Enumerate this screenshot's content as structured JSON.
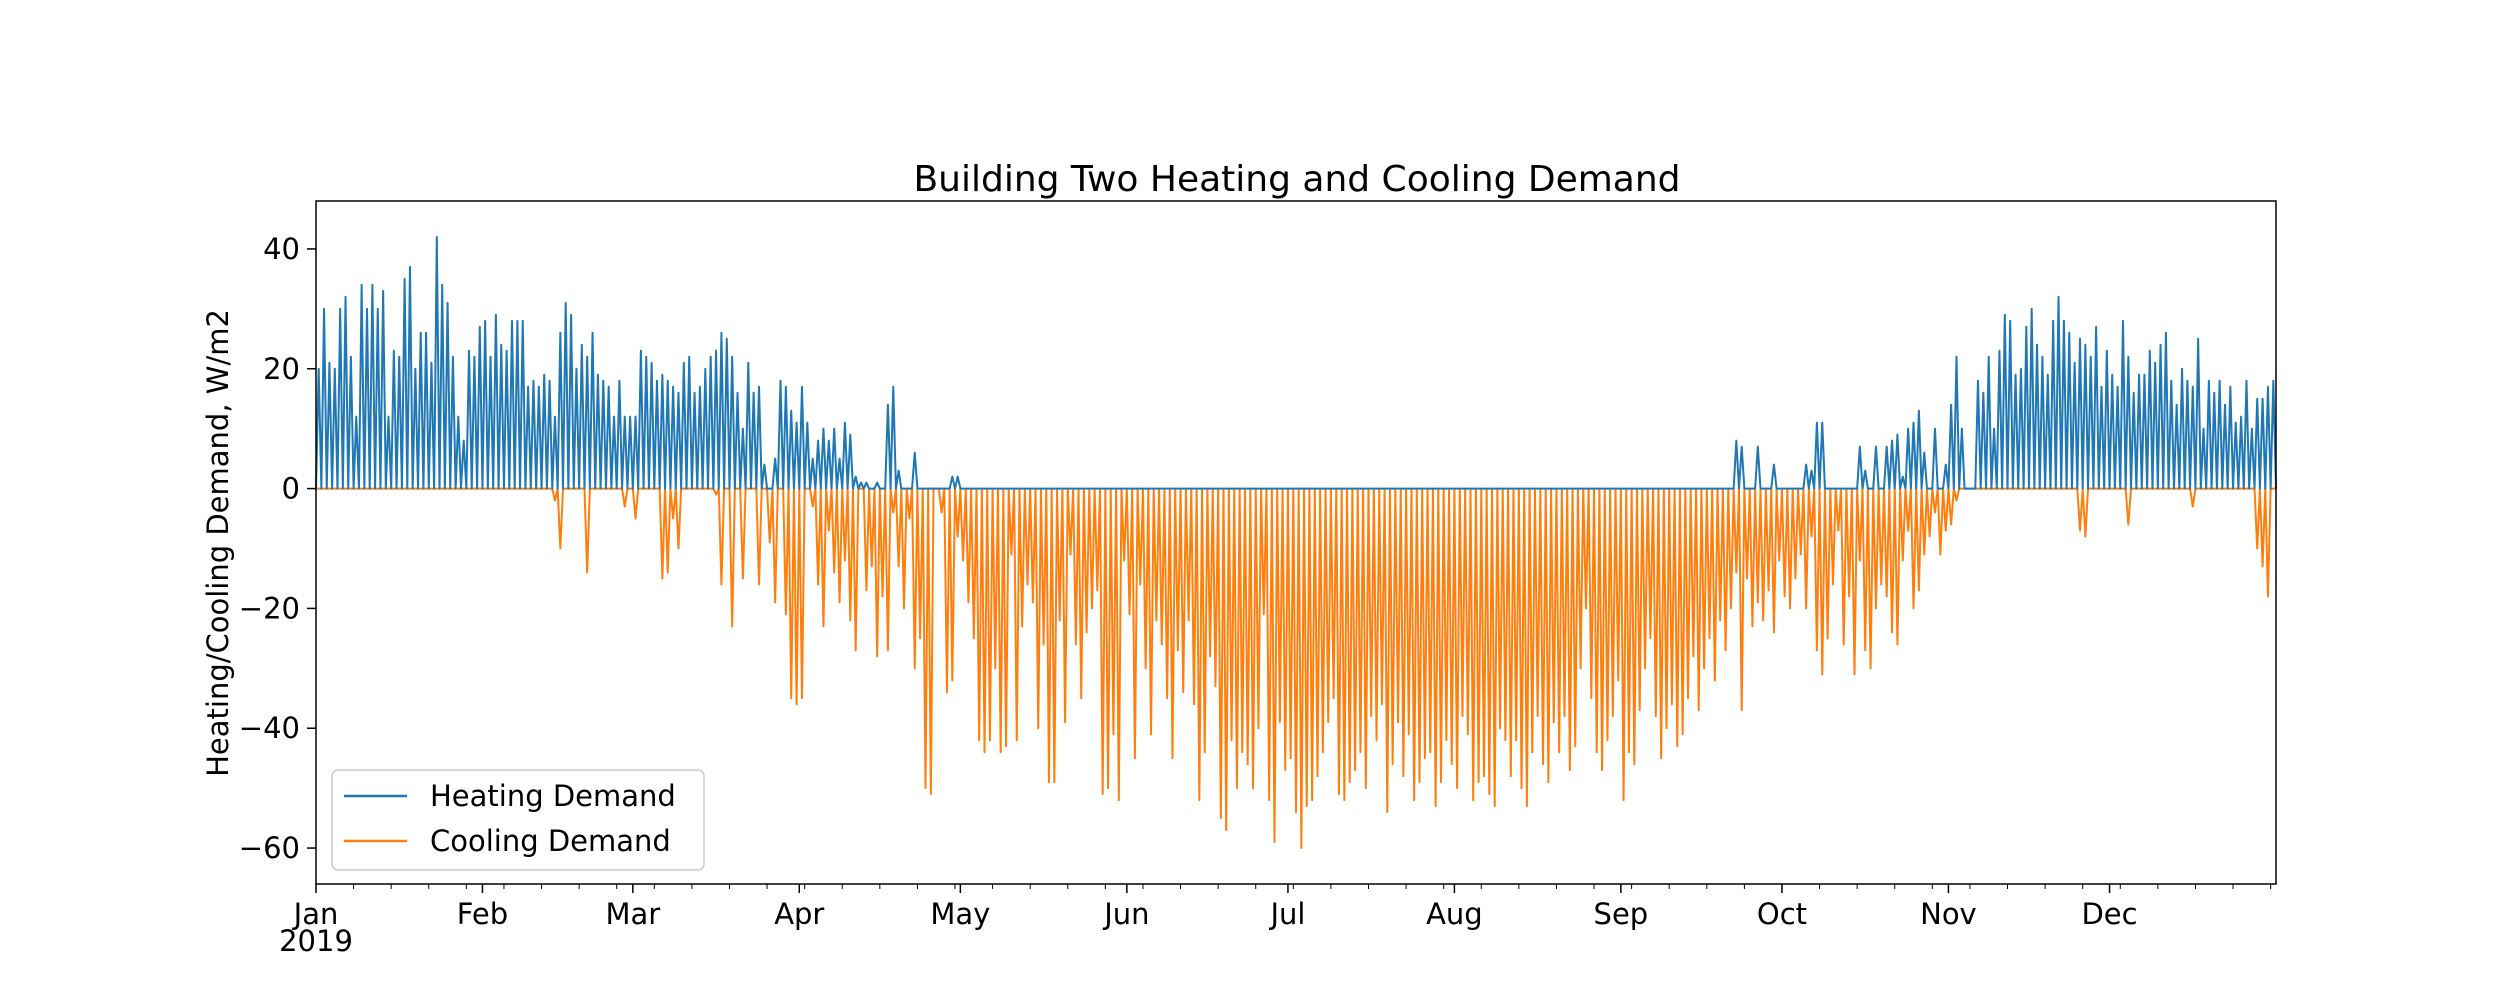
{
  "chart_data": {
    "type": "line",
    "title": "Building Two Heating and Cooling Demand",
    "xlabel": "",
    "ylabel": "Heating/Cooling Demand, W/m2",
    "year_label": "2019",
    "x_range": [
      "2019-01-01",
      "2019-12-31"
    ],
    "ylim": [
      -66,
      48
    ],
    "yticks": [
      40,
      20,
      0,
      -20,
      -40,
      -60
    ],
    "ytick_labels": [
      "40",
      "20",
      "0",
      "−20",
      "−40",
      "−60"
    ],
    "xticks": [
      {
        "date": "2019-01-01",
        "label": "Jan"
      },
      {
        "date": "2019-02-01",
        "label": "Feb"
      },
      {
        "date": "2019-03-01",
        "label": "Mar"
      },
      {
        "date": "2019-04-01",
        "label": "Apr"
      },
      {
        "date": "2019-05-01",
        "label": "May"
      },
      {
        "date": "2019-06-01",
        "label": "Jun"
      },
      {
        "date": "2019-07-01",
        "label": "Jul"
      },
      {
        "date": "2019-08-01",
        "label": "Aug"
      },
      {
        "date": "2019-09-01",
        "label": "Sep"
      },
      {
        "date": "2019-10-01",
        "label": "Oct"
      },
      {
        "date": "2019-11-01",
        "label": "Nov"
      },
      {
        "date": "2019-12-01",
        "label": "Dec"
      }
    ],
    "grid": false,
    "legend_position": "lower-left",
    "series": [
      {
        "name": "Heating Demand",
        "color": "#1f77b4",
        "daily_peak": [
          20,
          30,
          21,
          20,
          30,
          32,
          22,
          12,
          34,
          30,
          34,
          30,
          33,
          12,
          23,
          22,
          35,
          37,
          20,
          26,
          26,
          21,
          42,
          34,
          31,
          22,
          12,
          8,
          23,
          22,
          27,
          28,
          22,
          29,
          24,
          23,
          28,
          28,
          28,
          17,
          18,
          17,
          19,
          18,
          12,
          26,
          31,
          29,
          20,
          24,
          22,
          26,
          19,
          18,
          17,
          12,
          18,
          12,
          12,
          12,
          23,
          22,
          21,
          18,
          19,
          18,
          17,
          16,
          21,
          22,
          16,
          17,
          20,
          22,
          23,
          26,
          25,
          22,
          16,
          10,
          21,
          16,
          17,
          4,
          0,
          5,
          18,
          17,
          13,
          11,
          17,
          11,
          5,
          8,
          10,
          8,
          10,
          5,
          11,
          9,
          2,
          1,
          1,
          0,
          1,
          0,
          14,
          17,
          3,
          0,
          0,
          6,
          0,
          0,
          0,
          0,
          0,
          0,
          2,
          2,
          0,
          0,
          0,
          0,
          0,
          0,
          0,
          0,
          0,
          0,
          0,
          0,
          0,
          0,
          0,
          0,
          0,
          0,
          0,
          0,
          0,
          0,
          0,
          0,
          0,
          0,
          0,
          0,
          0,
          0,
          0,
          0,
          0,
          0,
          0,
          0,
          0,
          0,
          0,
          0,
          0,
          0,
          0,
          0,
          0,
          0,
          0,
          0,
          0,
          0,
          0,
          0,
          0,
          0,
          0,
          0,
          0,
          0,
          0,
          0,
          0,
          0,
          0,
          0,
          0,
          0,
          0,
          0,
          0,
          0,
          0,
          0,
          0,
          0,
          0,
          0,
          0,
          0,
          0,
          0,
          0,
          0,
          0,
          0,
          0,
          0,
          0,
          0,
          0,
          0,
          0,
          0,
          0,
          0,
          0,
          0,
          0,
          0,
          0,
          0,
          0,
          0,
          0,
          0,
          0,
          0,
          0,
          0,
          0,
          0,
          0,
          0,
          0,
          0,
          0,
          0,
          0,
          0,
          0,
          0,
          0,
          0,
          0,
          0,
          0,
          0,
          0,
          0,
          0,
          0,
          0,
          0,
          0,
          0,
          0,
          0,
          0,
          0,
          0,
          0,
          0,
          0,
          0,
          0,
          8,
          7,
          0,
          0,
          7,
          0,
          0,
          4,
          0,
          0,
          0,
          0,
          0,
          4,
          3,
          11,
          11,
          0,
          0,
          0,
          0,
          0,
          0,
          7,
          3,
          0,
          7,
          0,
          7,
          8,
          9,
          2,
          10,
          11,
          13,
          6,
          0,
          10,
          0,
          4,
          14,
          22,
          10,
          0,
          0,
          18,
          16,
          22,
          10,
          23,
          29,
          28,
          19,
          20,
          27,
          30,
          24,
          22,
          19,
          28,
          32,
          28,
          26,
          21,
          25,
          24,
          22,
          27,
          17,
          23,
          19,
          17,
          28,
          22,
          16,
          19,
          19,
          23,
          21,
          24,
          26,
          18,
          14,
          20,
          18,
          17,
          25,
          10,
          18,
          16,
          18,
          14,
          17,
          11,
          12,
          18,
          10,
          15,
          15,
          17,
          18
        ]
      },
      {
        "name": "Cooling Demand",
        "color": "#ff7f0e",
        "daily_peak": [
          0,
          0,
          0,
          0,
          0,
          0,
          0,
          0,
          0,
          0,
          0,
          0,
          0,
          0,
          0,
          0,
          0,
          0,
          0,
          0,
          0,
          0,
          0,
          0,
          0,
          0,
          0,
          0,
          0,
          0,
          0,
          0,
          0,
          0,
          0,
          0,
          0,
          0,
          0,
          0,
          0,
          0,
          0,
          0,
          -2,
          -10,
          0,
          0,
          0,
          0,
          -14,
          0,
          0,
          0,
          0,
          0,
          0,
          -3,
          0,
          -5,
          0,
          0,
          0,
          0,
          -15,
          -14,
          -5,
          -10,
          0,
          0,
          0,
          0,
          0,
          0,
          -1,
          -16,
          0,
          -23,
          0,
          -15,
          0,
          0,
          -16,
          0,
          -9,
          -19,
          0,
          -21,
          -35,
          -36,
          -35,
          0,
          -3,
          -16,
          -23,
          -7,
          -14,
          -19,
          -12,
          -22,
          -27,
          0,
          -17,
          -13,
          -28,
          -18,
          -27,
          -4,
          -13,
          -20,
          -5,
          -30,
          -25,
          -50,
          -51,
          0,
          -4,
          -34,
          -32,
          -8,
          -12,
          -19,
          -25,
          -42,
          -44,
          -42,
          -30,
          -44,
          -43,
          -11,
          -42,
          -23,
          -16,
          -19,
          -40,
          -26,
          -49,
          -49,
          -22,
          -39,
          -11,
          -26,
          -35,
          -24,
          -20,
          -17,
          -51,
          -50,
          -41,
          -52,
          -12,
          -21,
          -45,
          -16,
          -30,
          -41,
          -22,
          -26,
          -35,
          -45,
          -27,
          -34,
          -22,
          -36,
          -52,
          -44,
          -28,
          -33,
          -55,
          -57,
          -42,
          -50,
          -44,
          -46,
          -50,
          -40,
          -21,
          -52,
          -59,
          -39,
          -47,
          -45,
          -54,
          -60,
          -53,
          -52,
          -48,
          -44,
          -39,
          -35,
          -51,
          -52,
          -49,
          -47,
          -44,
          -50,
          -38,
          -42,
          -36,
          -54,
          -46,
          -39,
          -48,
          -41,
          -52,
          -49,
          -45,
          -44,
          -53,
          -49,
          -42,
          -46,
          -50,
          -38,
          -41,
          -52,
          -49,
          -48,
          -51,
          -53,
          -40,
          -42,
          -48,
          -42,
          -50,
          -53,
          -44,
          -38,
          -46,
          -49,
          -39,
          -44,
          -38,
          -47,
          -43,
          -30,
          -20,
          -35,
          -44,
          -47,
          -42,
          -38,
          -32,
          -52,
          -44,
          -46,
          -37,
          -30,
          -25,
          -38,
          -45,
          -40,
          -36,
          -43,
          -41,
          -35,
          -28,
          -37,
          -30,
          -25,
          -32,
          -22,
          -27,
          -20,
          -14,
          -37,
          -15,
          -23,
          -19,
          -22,
          -17,
          -24,
          -12,
          -18,
          -20,
          -15,
          -11,
          -20,
          -8,
          -27,
          -31,
          -25,
          -16,
          -7,
          -26,
          -18,
          -31,
          -12,
          -27,
          -30,
          -20,
          -16,
          -18,
          -24,
          -26,
          -12,
          -7,
          -20,
          -17,
          -11,
          -8,
          -4,
          -11,
          -7,
          -6,
          -2,
          0,
          0,
          0,
          0,
          0,
          0,
          0,
          0,
          0,
          0,
          0,
          0,
          0,
          0,
          0,
          0,
          0,
          0,
          0,
          0,
          0,
          0,
          -7,
          -8,
          0,
          0,
          0,
          0,
          0,
          0,
          0,
          -6,
          0,
          0,
          0,
          0,
          0,
          0,
          0,
          0,
          0,
          0,
          0,
          -3,
          0,
          0,
          0,
          0,
          0,
          0,
          0,
          0,
          0,
          0,
          0,
          -10,
          -13,
          -18,
          0
        ]
      }
    ]
  }
}
